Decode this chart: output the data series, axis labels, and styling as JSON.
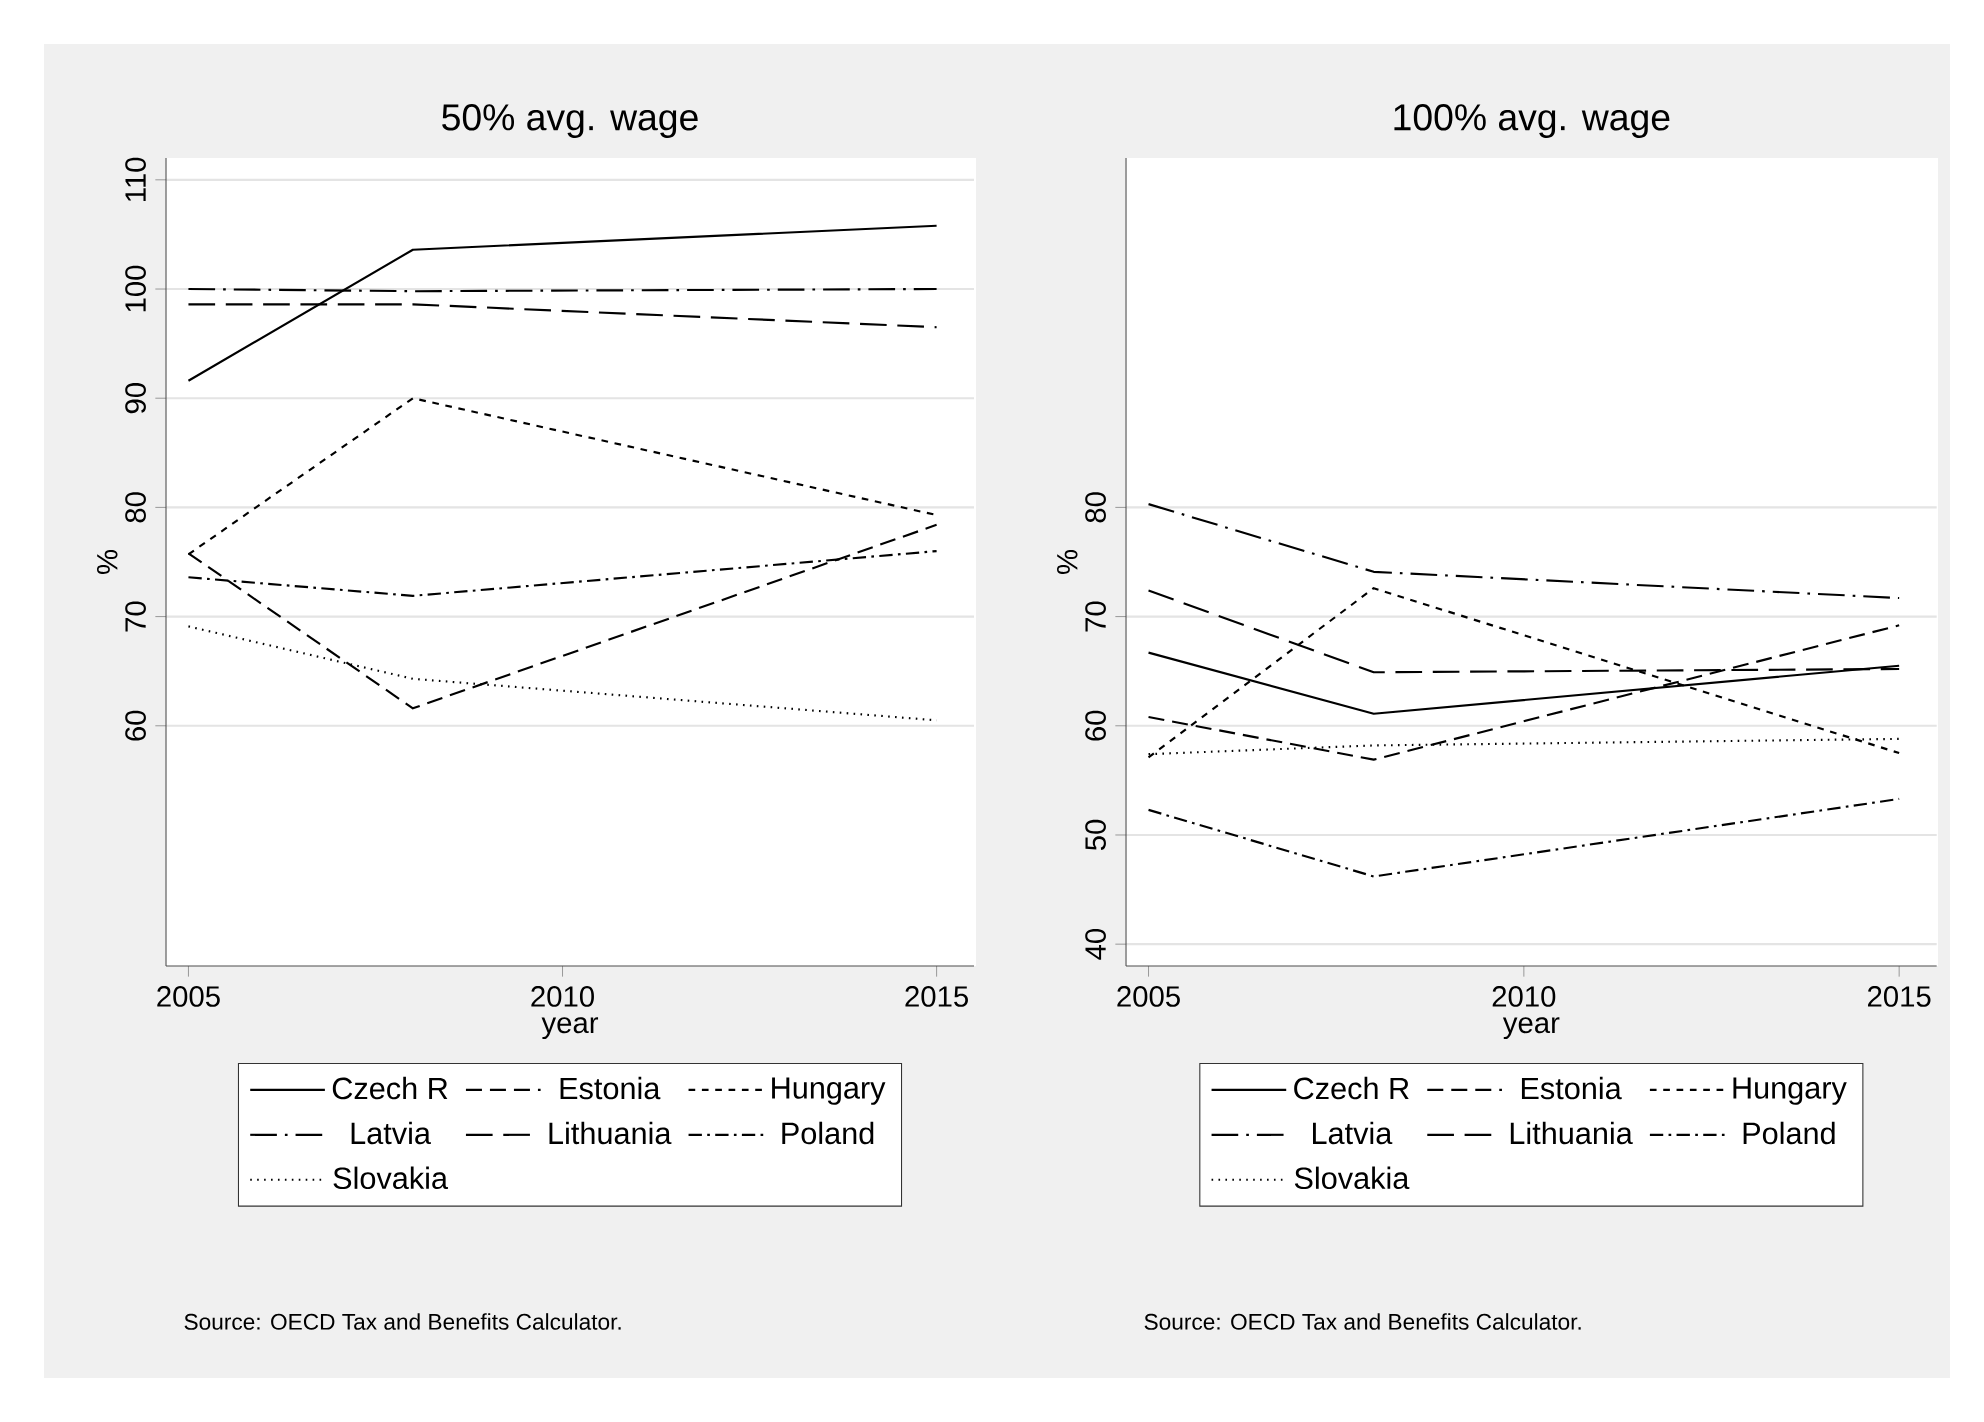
{
  "chart_data": [
    {
      "type": "line",
      "title": "50% avg. wage",
      "xlabel": "year",
      "ylabel": "%",
      "x": [
        2005,
        2008,
        2015
      ],
      "xlim": [
        2004.7,
        2015.5
      ],
      "ylim": [
        38,
        112
      ],
      "xticks": [
        2005,
        2010,
        2015
      ],
      "yticks": [
        60,
        70,
        80,
        90,
        100,
        110
      ],
      "grid": "y",
      "legend": "bottom",
      "annotations": [
        "Source: OECD Tax and Benefits Calculator."
      ],
      "series": [
        {
          "name": "Czech R",
          "color": "#000000",
          "line_style": "solid",
          "values": [
            91.6,
            103.6,
            105.8
          ]
        },
        {
          "name": "Estonia",
          "color": "#000000",
          "line_style": "dashed",
          "values": [
            75.8,
            61.6,
            78.4
          ]
        },
        {
          "name": "Hungary",
          "color": "#000000",
          "line_style": "shortdash",
          "values": [
            75.7,
            90,
            79.3
          ]
        },
        {
          "name": "Latvia",
          "color": "#000000",
          "line_style": "longdashdot",
          "values": [
            100,
            99.8,
            100
          ]
        },
        {
          "name": "Lithuania",
          "color": "#000000",
          "line_style": "longdash",
          "values": [
            98.6,
            98.6,
            96.5
          ]
        },
        {
          "name": "Poland",
          "color": "#000000",
          "line_style": "dashdot",
          "values": [
            73.6,
            71.9,
            76
          ]
        },
        {
          "name": "Slovakia",
          "color": "#000000",
          "line_style": "dotted",
          "values": [
            69.1,
            64.3,
            60.5
          ]
        }
      ]
    },
    {
      "type": "line",
      "title": "100% avg. wage",
      "xlabel": "year",
      "ylabel": "%",
      "x": [
        2005,
        2008,
        2015
      ],
      "xlim": [
        2004.7,
        2015.5
      ],
      "ylim": [
        38,
        112
      ],
      "xticks": [
        2005,
        2010,
        2015
      ],
      "yticks": [
        40,
        50,
        60,
        70,
        80
      ],
      "grid": "y",
      "legend": "bottom",
      "annotations": [
        "Source: OECD Tax and Benefits Calculator."
      ],
      "series": [
        {
          "name": "Czech R",
          "color": "#000000",
          "line_style": "solid",
          "values": [
            66.7,
            61.1,
            65.5
          ]
        },
        {
          "name": "Estonia",
          "color": "#000000",
          "line_style": "dashed",
          "values": [
            60.8,
            56.9,
            69.2
          ]
        },
        {
          "name": "Hungary",
          "color": "#000000",
          "line_style": "shortdash",
          "values": [
            57.1,
            72.6,
            57.5
          ]
        },
        {
          "name": "Latvia",
          "color": "#000000",
          "line_style": "longdashdot",
          "values": [
            80.3,
            74.1,
            71.7
          ]
        },
        {
          "name": "Lithuania",
          "color": "#000000",
          "line_style": "longdash",
          "values": [
            72.4,
            64.9,
            65.2
          ]
        },
        {
          "name": "Poland",
          "color": "#000000",
          "line_style": "dashdot",
          "values": [
            52.3,
            46.2,
            53.3
          ]
        },
        {
          "name": "Slovakia",
          "color": "#000000",
          "line_style": "dotted",
          "values": [
            57.4,
            58.2,
            58.8
          ]
        }
      ]
    }
  ]
}
